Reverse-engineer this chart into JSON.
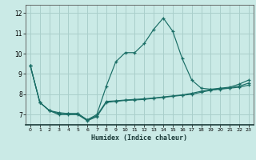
{
  "title": "",
  "xlabel": "Humidex (Indice chaleur)",
  "background_color": "#caeae6",
  "grid_color": "#aacfcb",
  "line_color": "#1a6e66",
  "x_ticks": [
    0,
    1,
    2,
    3,
    4,
    5,
    6,
    7,
    8,
    9,
    10,
    11,
    12,
    13,
    14,
    15,
    16,
    17,
    18,
    19,
    20,
    21,
    22,
    23
  ],
  "y_ticks": [
    7,
    8,
    9,
    10,
    11,
    12
  ],
  "ylim": [
    6.5,
    12.4
  ],
  "xlim": [
    -0.5,
    23.5
  ],
  "s1": [
    9.4,
    7.6,
    7.2,
    7.0,
    7.0,
    7.0,
    6.7,
    6.9,
    7.6,
    7.65,
    7.7,
    7.72,
    7.75,
    7.8,
    7.85,
    7.9,
    7.95,
    8.0,
    8.1,
    8.2,
    8.25,
    8.3,
    8.35,
    8.45
  ],
  "s2": [
    9.4,
    7.6,
    7.2,
    7.1,
    7.05,
    7.05,
    6.75,
    7.0,
    8.4,
    9.6,
    10.05,
    10.05,
    10.5,
    11.2,
    11.75,
    11.1,
    9.75,
    8.7,
    8.3,
    8.25,
    8.3,
    8.35,
    8.5,
    8.7
  ],
  "s3": [
    9.4,
    7.6,
    7.2,
    7.05,
    7.05,
    7.05,
    6.72,
    6.95,
    7.65,
    7.68,
    7.72,
    7.75,
    7.78,
    7.82,
    7.87,
    7.92,
    7.97,
    8.05,
    8.15,
    8.22,
    8.27,
    8.32,
    8.4,
    8.55
  ]
}
